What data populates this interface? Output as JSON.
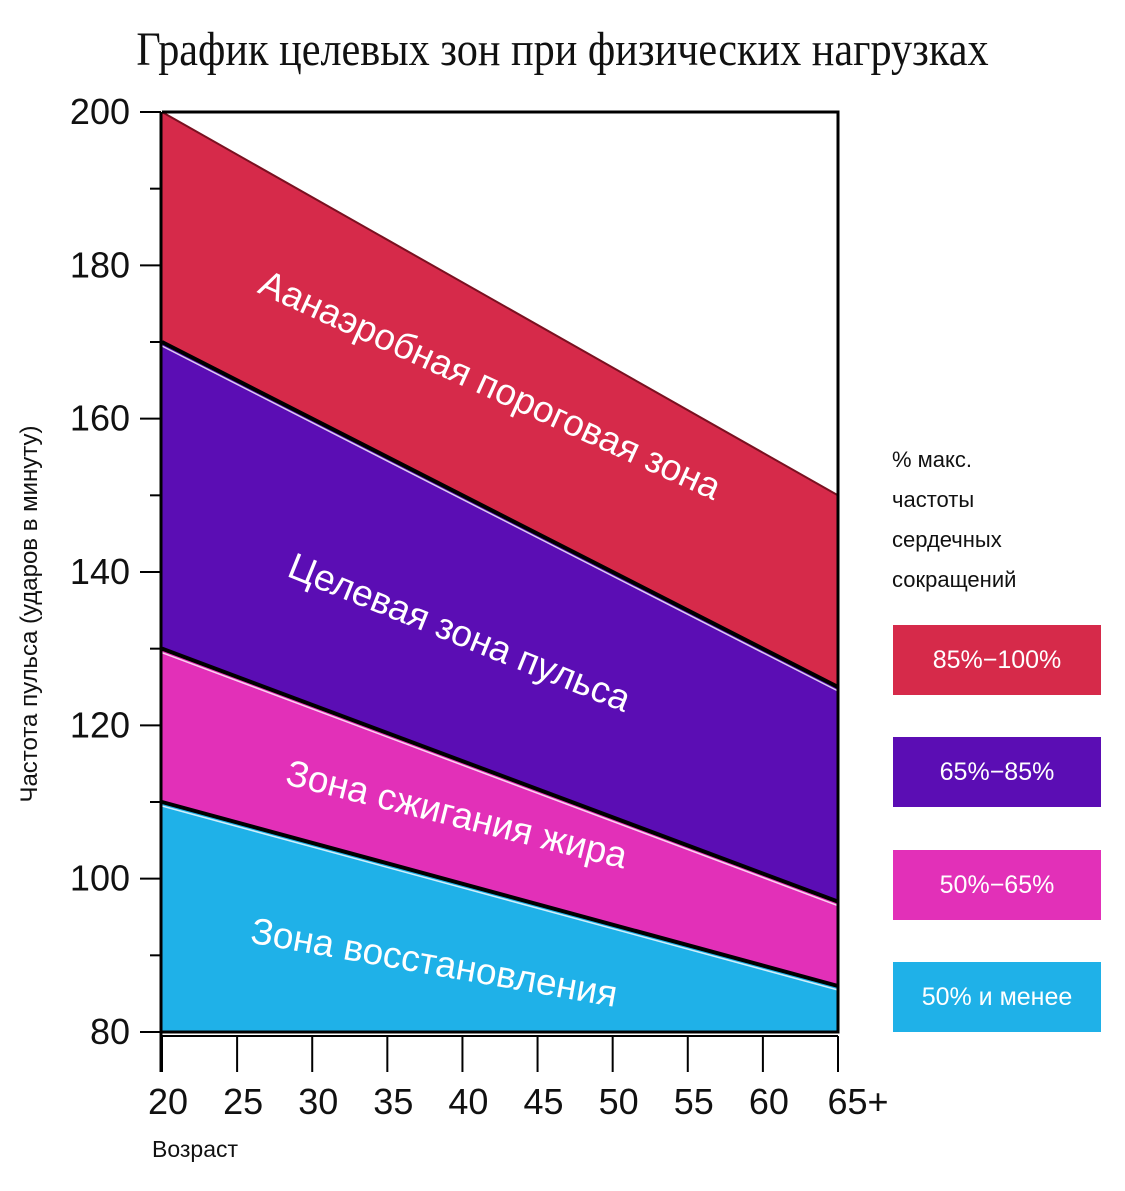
{
  "chart_data": {
    "type": "area",
    "title": "График целевых зон при физических нагрузках",
    "xlabel": "Возраст",
    "ylabel": "Частота пульса (ударов в минуту)",
    "x": [
      20,
      25,
      30,
      35,
      40,
      45,
      50,
      55,
      60,
      65
    ],
    "x_tick_labels": [
      "20",
      "25",
      "30",
      "35",
      "40",
      "45",
      "50",
      "55",
      "60",
      "65+"
    ],
    "y_ticks": [
      80,
      100,
      120,
      140,
      160,
      180,
      200
    ],
    "ylim": [
      80,
      200
    ],
    "xlim": [
      20,
      65
    ],
    "boundaries": {
      "max": [
        200,
        150
      ],
      "p85": [
        170,
        125
      ],
      "p65": [
        130,
        97
      ],
      "p50": [
        110,
        86
      ]
    },
    "series": [
      {
        "name": "Аанаэробная пороговая зона",
        "color": "#d62a4a",
        "lower": "p85",
        "upper": "max",
        "label_rotation_deg": 24.5
      },
      {
        "name": "Целевая зона пульса",
        "color": "#5b0db4",
        "lower": "p65",
        "upper": "p85",
        "label_rotation_deg": 22
      },
      {
        "name": "Зона сжигания жира",
        "color": "#e230b8",
        "lower": "p50",
        "upper": "p65",
        "label_rotation_deg": 14
      },
      {
        "name": "Зона восстановления",
        "color": "#1fb1e8",
        "lower": "base",
        "upper": "p50",
        "label_rotation_deg": 10
      }
    ],
    "legend": {
      "title_lines": [
        "% макс.",
        "частоты",
        "сердечных",
        "сокращений"
      ],
      "items": [
        {
          "label": "85%−100%",
          "color": "#d62a4a"
        },
        {
          "label": "65%−85%",
          "color": "#5b0db4"
        },
        {
          "label": "50%−65%",
          "color": "#e230b8"
        },
        {
          "label": "50% и менее",
          "color": "#1fb1e8"
        }
      ],
      "placement": "right"
    },
    "grid": false
  }
}
